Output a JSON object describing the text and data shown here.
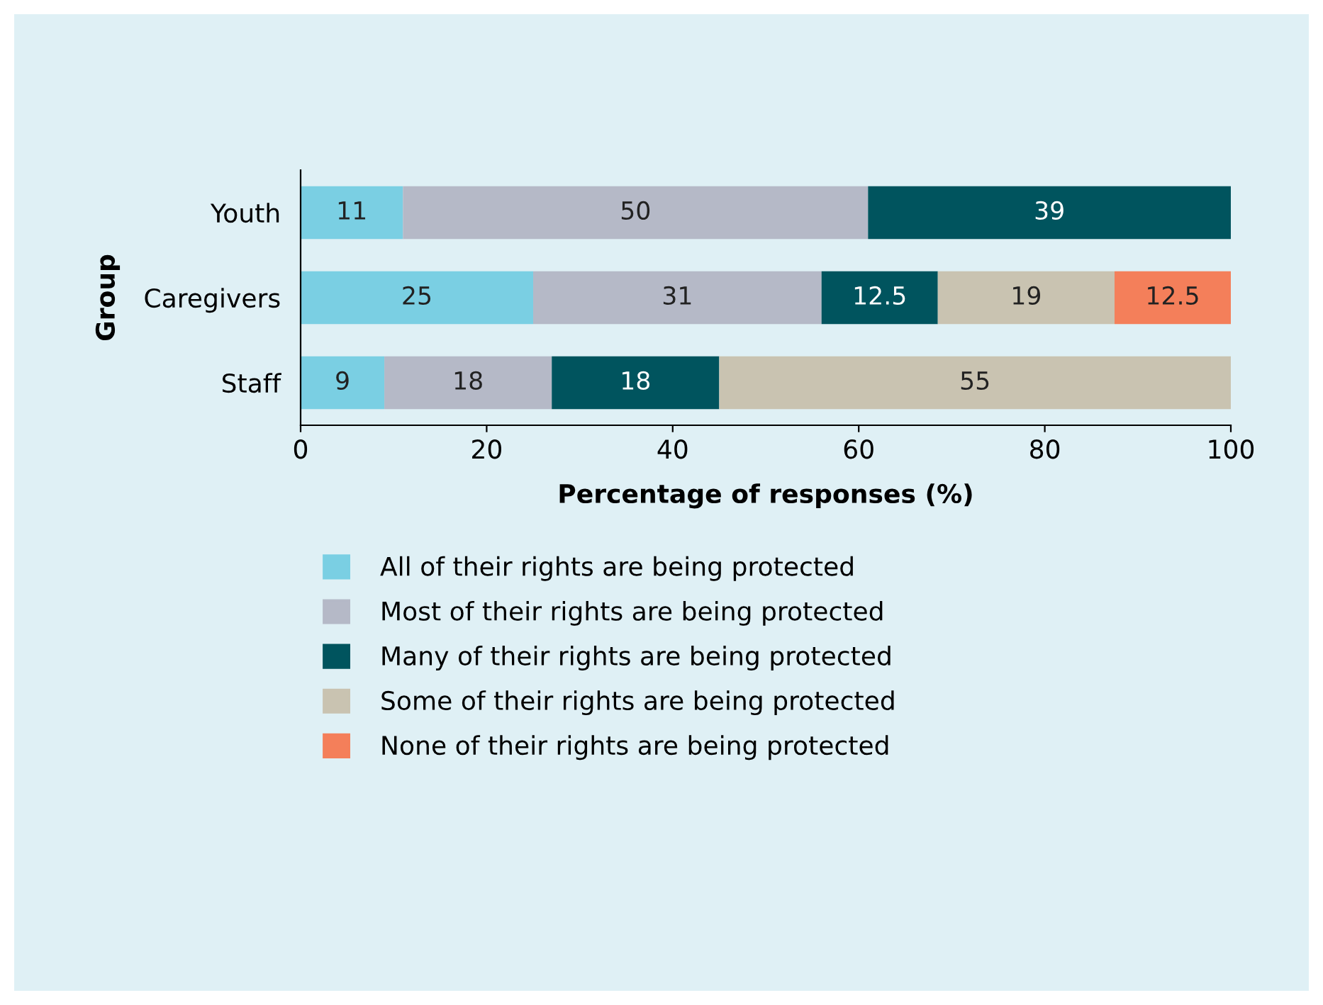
{
  "chart_data": {
    "type": "bar",
    "orientation": "horizontal",
    "stacked": true,
    "data_labels": true,
    "categories": [
      "Youth",
      "Caregivers",
      "Staff"
    ],
    "xlabel": "Percentage of responses (%)",
    "ylabel": "Group",
    "xlim": [
      0,
      100
    ],
    "xticks": [
      0,
      20,
      40,
      60,
      80,
      100
    ],
    "grid": false,
    "legend": "bottom",
    "series": [
      {
        "name": "All of their rights are being protected",
        "color": "#7acfe3",
        "values": [
          11,
          25,
          9
        ]
      },
      {
        "name": "Most of their rights are being protected",
        "color": "#b5b9c7",
        "values": [
          50,
          31,
          18
        ]
      },
      {
        "name": "Many of their rights are being protected",
        "color": "#00545e",
        "values": [
          39,
          12.5,
          18
        ]
      },
      {
        "name": "Some of their rights are being protected",
        "color": "#c9c3b1",
        "values": [
          null,
          19,
          55
        ]
      },
      {
        "name": "None of their rights are being protected",
        "color": "#f47f5a",
        "values": [
          null,
          12.5,
          null
        ]
      }
    ]
  }
}
